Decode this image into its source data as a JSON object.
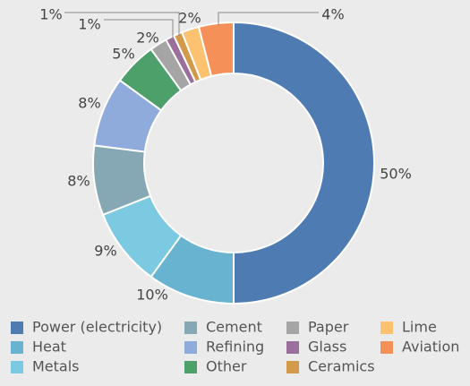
{
  "chart_data": {
    "type": "donut",
    "categories": [
      "Power (electricity)",
      "Heat",
      "Metals",
      "Cement",
      "Refining",
      "Other",
      "Paper",
      "Glass",
      "Ceramics",
      "Lime",
      "Aviation"
    ],
    "values": [
      50,
      10,
      9,
      8,
      8,
      5,
      2,
      1,
      1,
      2,
      4
    ],
    "value_labels": [
      "50%",
      "10%",
      "9%",
      "8%",
      "8%",
      "5%",
      "2%",
      "1%",
      "1%",
      "2%",
      "4%"
    ],
    "colors": [
      "#4f7bb3",
      "#67b3d0",
      "#7ccae2",
      "#86a8b5",
      "#8fabdc",
      "#4da06a",
      "#a5a5a5",
      "#9b6f9b",
      "#d49a4c",
      "#fcc26f",
      "#f59158"
    ]
  }
}
